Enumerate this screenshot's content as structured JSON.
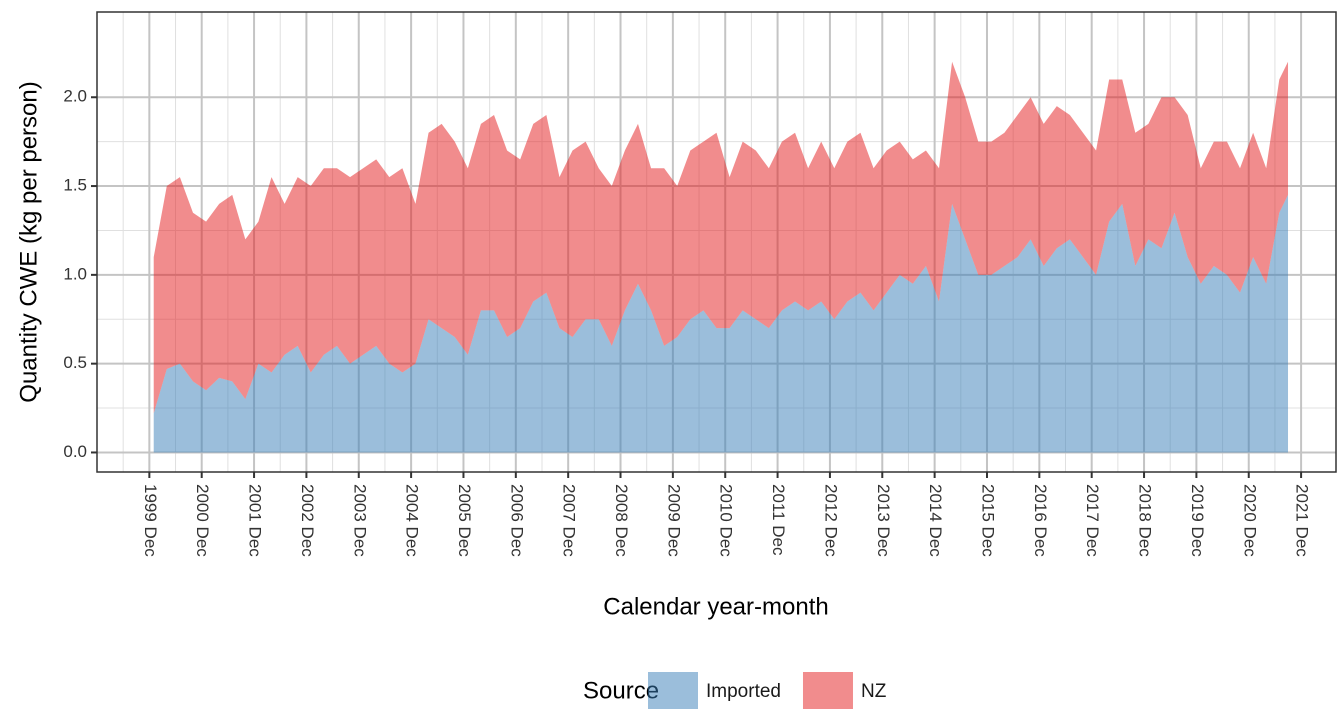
{
  "chart_data": {
    "type": "stacked_area",
    "x_label": "Calendar year-month",
    "y_label": "Quantity CWE (kg per person)",
    "legend_title": "Source",
    "x": [
      "2000-01",
      "2000-04",
      "2000-07",
      "2000-10",
      "2001-01",
      "2001-04",
      "2001-07",
      "2001-10",
      "2002-01",
      "2002-04",
      "2002-07",
      "2002-10",
      "2003-01",
      "2003-04",
      "2003-07",
      "2003-10",
      "2004-01",
      "2004-04",
      "2004-07",
      "2004-10",
      "2005-01",
      "2005-04",
      "2005-07",
      "2005-10",
      "2006-01",
      "2006-04",
      "2006-07",
      "2006-10",
      "2007-01",
      "2007-04",
      "2007-07",
      "2007-10",
      "2008-01",
      "2008-04",
      "2008-07",
      "2008-10",
      "2009-01",
      "2009-04",
      "2009-07",
      "2009-10",
      "2010-01",
      "2010-04",
      "2010-07",
      "2010-10",
      "2011-01",
      "2011-04",
      "2011-07",
      "2011-10",
      "2012-01",
      "2012-04",
      "2012-07",
      "2012-10",
      "2013-01",
      "2013-04",
      "2013-07",
      "2013-10",
      "2014-01",
      "2014-04",
      "2014-07",
      "2014-10",
      "2015-01",
      "2015-04",
      "2015-07",
      "2015-10",
      "2016-01",
      "2016-04",
      "2016-07",
      "2016-10",
      "2017-01",
      "2017-04",
      "2017-07",
      "2017-10",
      "2018-01",
      "2018-04",
      "2018-07",
      "2018-10",
      "2019-01",
      "2019-04",
      "2019-07",
      "2019-10",
      "2020-01",
      "2020-04",
      "2020-07",
      "2020-10",
      "2021-01",
      "2021-04",
      "2021-07",
      "2021-09"
    ],
    "series": [
      {
        "name": "Imported",
        "color": "#377eb8",
        "values": [
          0.22,
          0.47,
          0.5,
          0.4,
          0.35,
          0.42,
          0.4,
          0.3,
          0.5,
          0.45,
          0.55,
          0.6,
          0.45,
          0.55,
          0.6,
          0.5,
          0.55,
          0.6,
          0.5,
          0.45,
          0.5,
          0.75,
          0.7,
          0.65,
          0.55,
          0.8,
          0.8,
          0.65,
          0.7,
          0.85,
          0.9,
          0.7,
          0.65,
          0.75,
          0.75,
          0.6,
          0.8,
          0.95,
          0.8,
          0.6,
          0.65,
          0.75,
          0.8,
          0.7,
          0.7,
          0.8,
          0.75,
          0.7,
          0.8,
          0.85,
          0.8,
          0.85,
          0.75,
          0.85,
          0.9,
          0.8,
          0.9,
          1.0,
          0.95,
          1.05,
          0.85,
          1.4,
          1.2,
          1.0,
          1.0,
          1.05,
          1.1,
          1.2,
          1.05,
          1.15,
          1.2,
          1.1,
          1.0,
          1.3,
          1.4,
          1.05,
          1.2,
          1.15,
          1.35,
          1.1,
          0.95,
          1.05,
          1.0,
          0.9,
          1.1,
          0.95,
          1.35,
          1.45
        ]
      },
      {
        "name": "NZ",
        "color": "#e41a1c",
        "values": [
          0.88,
          1.03,
          1.05,
          0.95,
          0.95,
          0.98,
          1.05,
          0.9,
          0.8,
          1.1,
          0.85,
          0.95,
          1.05,
          1.05,
          1.0,
          1.05,
          1.05,
          1.05,
          1.05,
          1.15,
          0.9,
          1.05,
          1.15,
          1.1,
          1.05,
          1.05,
          1.1,
          1.05,
          0.95,
          1.0,
          1.0,
          0.85,
          1.05,
          1.0,
          0.85,
          0.9,
          0.9,
          0.9,
          0.8,
          1.0,
          0.85,
          0.95,
          0.95,
          1.1,
          0.85,
          0.95,
          0.95,
          0.9,
          0.95,
          0.95,
          0.8,
          0.9,
          0.85,
          0.9,
          0.9,
          0.8,
          0.8,
          0.75,
          0.7,
          0.65,
          0.75,
          0.8,
          0.8,
          0.75,
          0.75,
          0.75,
          0.8,
          0.8,
          0.8,
          0.8,
          0.7,
          0.7,
          0.7,
          0.8,
          0.7,
          0.75,
          0.65,
          0.85,
          0.65,
          0.8,
          0.65,
          0.7,
          0.75,
          0.7,
          0.7,
          0.65,
          0.75,
          0.75
        ]
      }
    ],
    "xlim": [
      "1998-12",
      "2022-08"
    ],
    "xticks": [
      {
        "value": "1999-12",
        "label": "1999 Dec"
      },
      {
        "value": "2000-12",
        "label": "2000 Dec"
      },
      {
        "value": "2001-12",
        "label": "2001 Dec"
      },
      {
        "value": "2002-12",
        "label": "2002 Dec"
      },
      {
        "value": "2003-12",
        "label": "2003 Dec"
      },
      {
        "value": "2004-12",
        "label": "2004 Dec"
      },
      {
        "value": "2005-12",
        "label": "2005 Dec"
      },
      {
        "value": "2006-12",
        "label": "2006 Dec"
      },
      {
        "value": "2007-12",
        "label": "2007 Dec"
      },
      {
        "value": "2008-12",
        "label": "2008 Dec"
      },
      {
        "value": "2009-12",
        "label": "2009 Dec"
      },
      {
        "value": "2010-12",
        "label": "2010 Dec"
      },
      {
        "value": "2011-12",
        "label": "2011 Dec"
      },
      {
        "value": "2012-12",
        "label": "2012 Dec"
      },
      {
        "value": "2013-12",
        "label": "2013 Dec"
      },
      {
        "value": "2014-12",
        "label": "2014 Dec"
      },
      {
        "value": "2015-12",
        "label": "2015 Dec"
      },
      {
        "value": "2016-12",
        "label": "2016 Dec"
      },
      {
        "value": "2017-12",
        "label": "2017 Dec"
      },
      {
        "value": "2018-12",
        "label": "2018 Dec"
      },
      {
        "value": "2019-12",
        "label": "2019 Dec"
      },
      {
        "value": "2020-12",
        "label": "2020 Dec"
      },
      {
        "value": "2021-12",
        "label": "2021 Dec"
      }
    ],
    "ylim": [
      -0.11,
      2.48
    ],
    "yticks": [
      {
        "value": 0,
        "label": "0.0"
      },
      {
        "value": 0.5,
        "label": "0.5"
      },
      {
        "value": 1,
        "label": "1.0"
      },
      {
        "value": 1.5,
        "label": "1.5"
      },
      {
        "value": 2,
        "label": "2.0"
      }
    ],
    "grid": true,
    "legend": "bottom",
    "opacity": 0.5
  }
}
